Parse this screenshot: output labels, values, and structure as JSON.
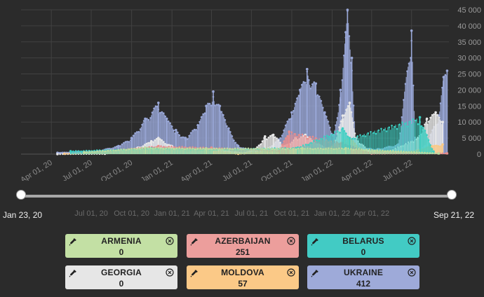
{
  "chart_data": {
    "type": "bar",
    "title": "",
    "xlabel": "",
    "ylabel": "",
    "ylim": [
      0,
      45000
    ],
    "y_ticks": [
      "0",
      "5 000",
      "10 000",
      "15 000",
      "20 000",
      "25 000",
      "30 000",
      "35 000",
      "40 000",
      "45 000"
    ],
    "x_ticks": [
      "Apr 01, 20",
      "Jul 01, 20",
      "Oct 01, 20",
      "Jan 01, 21",
      "Apr 01, 21",
      "Jul 01, 21",
      "Oct 01, 21",
      "Jan 01, 22",
      "Apr 01, 22",
      "Jul 01, 22"
    ],
    "x_range": [
      "2020-01-23",
      "2022-09-21"
    ],
    "grid": true,
    "legend": "bottom",
    "series": [
      {
        "name": "UKRAINE",
        "color": "#9aa8d8",
        "points": [
          [
            "2020-04-15",
            400
          ],
          [
            "2020-06-01",
            700
          ],
          [
            "2020-07-15",
            900
          ],
          [
            "2020-09-01",
            2500
          ],
          [
            "2020-10-01",
            5000
          ],
          [
            "2020-11-01",
            11000
          ],
          [
            "2020-12-01",
            16000
          ],
          [
            "2020-12-20",
            11000
          ],
          [
            "2021-01-10",
            7500
          ],
          [
            "2021-02-01",
            5000
          ],
          [
            "2021-03-01",
            9000
          ],
          [
            "2021-03-20",
            15000
          ],
          [
            "2021-04-05",
            19500
          ],
          [
            "2021-04-20",
            15000
          ],
          [
            "2021-05-10",
            8000
          ],
          [
            "2021-06-01",
            2500
          ],
          [
            "2021-07-01",
            1000
          ],
          [
            "2021-08-01",
            1200
          ],
          [
            "2021-09-01",
            4500
          ],
          [
            "2021-10-01",
            13000
          ],
          [
            "2021-10-20",
            20000
          ],
          [
            "2021-11-05",
            26500
          ],
          [
            "2021-11-25",
            22000
          ],
          [
            "2021-12-15",
            13000
          ],
          [
            "2022-01-05",
            6000
          ],
          [
            "2022-01-20",
            20000
          ],
          [
            "2022-02-01",
            38000
          ],
          [
            "2022-02-05",
            45000
          ],
          [
            "2022-02-15",
            30000
          ],
          [
            "2022-02-24",
            2000
          ],
          [
            "2022-04-15",
            1500
          ],
          [
            "2022-06-01",
            3000
          ],
          [
            "2022-07-01",
            38500
          ],
          [
            "2022-07-10",
            1000
          ],
          [
            "2022-08-01",
            2500
          ],
          [
            "2022-09-01",
            12000
          ],
          [
            "2022-09-12",
            24000
          ],
          [
            "2022-09-20",
            26000
          ]
        ]
      },
      {
        "name": "GEORGIA",
        "color": "#e8e8e8",
        "points": [
          [
            "2020-04-15",
            0
          ],
          [
            "2020-08-01",
            100
          ],
          [
            "2020-10-15",
            2000
          ],
          [
            "2020-11-15",
            4000
          ],
          [
            "2020-12-01",
            5000
          ],
          [
            "2021-01-01",
            2500
          ],
          [
            "2021-02-01",
            500
          ],
          [
            "2021-03-15",
            800
          ],
          [
            "2021-04-10",
            1500
          ],
          [
            "2021-05-10",
            800
          ],
          [
            "2021-06-15",
            300
          ],
          [
            "2021-07-10",
            1500
          ],
          [
            "2021-08-01",
            5500
          ],
          [
            "2021-08-20",
            6000
          ],
          [
            "2021-09-15",
            2500
          ],
          [
            "2021-10-10",
            5000
          ],
          [
            "2021-11-01",
            6000
          ],
          [
            "2021-12-01",
            3000
          ],
          [
            "2022-01-01",
            1500
          ],
          [
            "2022-01-25",
            12000
          ],
          [
            "2022-02-10",
            16000
          ],
          [
            "2022-02-25",
            5000
          ],
          [
            "2022-03-25",
            1000
          ],
          [
            "2022-05-01",
            300
          ],
          [
            "2022-07-15",
            5000
          ],
          [
            "2022-08-05",
            11000
          ],
          [
            "2022-08-25",
            13000
          ],
          [
            "2022-09-10",
            10000
          ]
        ]
      },
      {
        "name": "MOLDOVA",
        "color": "#f9c987",
        "points": [
          [
            "2020-05-01",
            100
          ],
          [
            "2020-11-01",
            1000
          ],
          [
            "2020-12-01",
            1300
          ],
          [
            "2021-03-15",
            1500
          ],
          [
            "2021-06-01",
            100
          ],
          [
            "2021-10-15",
            1800
          ],
          [
            "2021-12-01",
            900
          ],
          [
            "2022-02-10",
            5000
          ],
          [
            "2022-03-15",
            800
          ],
          [
            "2022-07-01",
            700
          ],
          [
            "2022-08-15",
            2500
          ],
          [
            "2022-09-10",
            3000
          ]
        ]
      },
      {
        "name": "AZERBAIJAN",
        "color": "#e88d8d",
        "points": [
          [
            "2020-07-01",
            500
          ],
          [
            "2020-12-01",
            2500
          ],
          [
            "2021-04-01",
            2000
          ],
          [
            "2021-09-01",
            1000
          ],
          [
            "2021-09-25",
            7000
          ],
          [
            "2022-01-25",
            3500
          ],
          [
            "2022-04-01",
            200
          ],
          [
            "2022-09-20",
            251
          ]
        ]
      },
      {
        "name": "BELARUS",
        "color": "#3ccfc2",
        "points": [
          [
            "2020-05-15",
            900
          ],
          [
            "2020-11-15",
            1800
          ],
          [
            "2021-04-01",
            1400
          ],
          [
            "2021-10-15",
            2000
          ],
          [
            "2022-01-25",
            8000
          ],
          [
            "2022-02-10",
            5000
          ],
          [
            "2022-07-20",
            11500
          ],
          [
            "2022-08-20",
            800
          ]
        ]
      },
      {
        "name": "ARMENIA",
        "color": "#bcdca0",
        "points": [
          [
            "2020-06-15",
            600
          ],
          [
            "2020-11-01",
            2000
          ],
          [
            "2021-03-20",
            1800
          ],
          [
            "2021-10-25",
            1800
          ],
          [
            "2022-02-01",
            1800
          ],
          [
            "2022-09-01",
            200
          ]
        ]
      }
    ]
  },
  "range_slider": {
    "start_label": "Jan 23, 20",
    "end_label": "Sep 21, 22",
    "start_fraction": 0,
    "end_fraction": 1,
    "ticks": [
      "Jul 01, 20",
      "Oct 01, 20",
      "Jan 01, 21",
      "Apr 01, 21",
      "Jul 01, 21",
      "Oct 01, 21",
      "Jan 01, 22",
      "Apr 01, 22"
    ]
  },
  "legend_cards": [
    {
      "name": "ARMENIA",
      "value": "0",
      "color": "#c3e0a4"
    },
    {
      "name": "AZERBAIJAN",
      "value": "251",
      "color": "#ec9e9c"
    },
    {
      "name": "BELARUS",
      "value": "0",
      "color": "#42cbc4"
    },
    {
      "name": "GEORGIA",
      "value": "0",
      "color": "#e6e6e6"
    },
    {
      "name": "MOLDOVA",
      "value": "57",
      "color": "#fbc987"
    },
    {
      "name": "UKRAINE",
      "value": "412",
      "color": "#9eaad9"
    }
  ],
  "icons": {
    "picker": "eyedropper-icon",
    "close": "close-circle-icon"
  }
}
